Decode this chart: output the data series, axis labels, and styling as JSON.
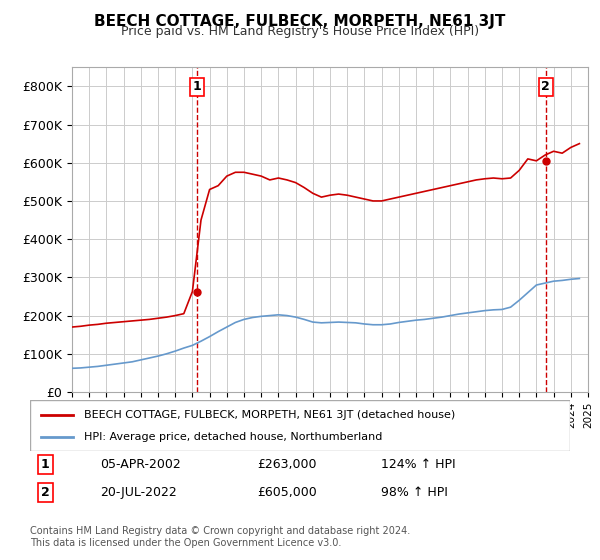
{
  "title": "BEECH COTTAGE, FULBECK, MORPETH, NE61 3JT",
  "subtitle": "Price paid vs. HM Land Registry's House Price Index (HPI)",
  "ylabel": "",
  "ylim": [
    0,
    850000
  ],
  "yticks": [
    0,
    100000,
    200000,
    300000,
    400000,
    500000,
    600000,
    700000,
    800000
  ],
  "ytick_labels": [
    "£0",
    "£100K",
    "£200K",
    "£300K",
    "£400K",
    "£500K",
    "£600K",
    "£700K",
    "£800K"
  ],
  "background_color": "#ffffff",
  "plot_background": "#ffffff",
  "grid_color": "#cccccc",
  "red_line_color": "#cc0000",
  "blue_line_color": "#6699cc",
  "sale1_date": 2002.26,
  "sale1_price": 263000,
  "sale1_label": "1",
  "sale1_text": "05-APR-2002",
  "sale1_amount": "£263,000",
  "sale1_hpi": "124% ↑ HPI",
  "sale2_date": 2022.55,
  "sale2_price": 605000,
  "sale2_label": "2",
  "sale2_text": "20-JUL-2022",
  "sale2_amount": "£605,000",
  "sale2_hpi": "98% ↑ HPI",
  "legend_line1": "BEECH COTTAGE, FULBECK, MORPETH, NE61 3JT (detached house)",
  "legend_line2": "HPI: Average price, detached house, Northumberland",
  "footnote": "Contains HM Land Registry data © Crown copyright and database right 2024.\nThis data is licensed under the Open Government Licence v3.0.",
  "xmin": 1995,
  "xmax": 2025,
  "hpi_x": [
    1995,
    1995.5,
    1996,
    1996.5,
    1997,
    1997.5,
    1998,
    1998.5,
    1999,
    1999.5,
    2000,
    2000.5,
    2001,
    2001.5,
    2002,
    2002.5,
    2003,
    2003.5,
    2004,
    2004.5,
    2005,
    2005.5,
    2006,
    2006.5,
    2007,
    2007.5,
    2008,
    2008.5,
    2009,
    2009.5,
    2010,
    2010.5,
    2011,
    2011.5,
    2012,
    2012.5,
    2013,
    2013.5,
    2014,
    2014.5,
    2015,
    2015.5,
    2016,
    2016.5,
    2017,
    2017.5,
    2018,
    2018.5,
    2019,
    2019.5,
    2020,
    2020.5,
    2021,
    2021.5,
    2022,
    2022.5,
    2023,
    2023.5,
    2024,
    2024.5
  ],
  "hpi_y": [
    62000,
    63000,
    65000,
    67000,
    70000,
    73000,
    76000,
    79000,
    84000,
    89000,
    94000,
    100000,
    107000,
    115000,
    122000,
    133000,
    145000,
    158000,
    170000,
    182000,
    190000,
    195000,
    198000,
    200000,
    202000,
    200000,
    196000,
    190000,
    183000,
    181000,
    182000,
    183000,
    182000,
    181000,
    178000,
    176000,
    176000,
    178000,
    182000,
    185000,
    188000,
    190000,
    193000,
    196000,
    200000,
    204000,
    207000,
    210000,
    213000,
    215000,
    216000,
    222000,
    240000,
    260000,
    280000,
    285000,
    290000,
    292000,
    295000,
    297000
  ],
  "price_x": [
    1995,
    1995.5,
    1996,
    1996.5,
    1997,
    1997.5,
    1998,
    1998.5,
    1999,
    1999.5,
    2000,
    2000.5,
    2001,
    2001.5,
    2002,
    2002.5,
    2003,
    2003.5,
    2004,
    2004.5,
    2005,
    2005.5,
    2006,
    2006.5,
    2007,
    2007.5,
    2008,
    2008.5,
    2009,
    2009.5,
    2010,
    2010.5,
    2011,
    2011.5,
    2012,
    2012.5,
    2013,
    2013.5,
    2014,
    2014.5,
    2015,
    2015.5,
    2016,
    2016.5,
    2017,
    2017.5,
    2018,
    2018.5,
    2019,
    2019.5,
    2020,
    2020.5,
    2021,
    2021.5,
    2022,
    2022.5,
    2023,
    2023.5,
    2024,
    2024.5
  ],
  "price_y": [
    170000,
    172000,
    175000,
    177000,
    180000,
    182000,
    184000,
    186000,
    188000,
    190000,
    193000,
    196000,
    200000,
    205000,
    263000,
    450000,
    530000,
    540000,
    565000,
    575000,
    575000,
    570000,
    565000,
    555000,
    560000,
    555000,
    548000,
    535000,
    520000,
    510000,
    515000,
    518000,
    515000,
    510000,
    505000,
    500000,
    500000,
    505000,
    510000,
    515000,
    520000,
    525000,
    530000,
    535000,
    540000,
    545000,
    550000,
    555000,
    558000,
    560000,
    558000,
    560000,
    580000,
    610000,
    605000,
    620000,
    630000,
    625000,
    640000,
    650000
  ]
}
